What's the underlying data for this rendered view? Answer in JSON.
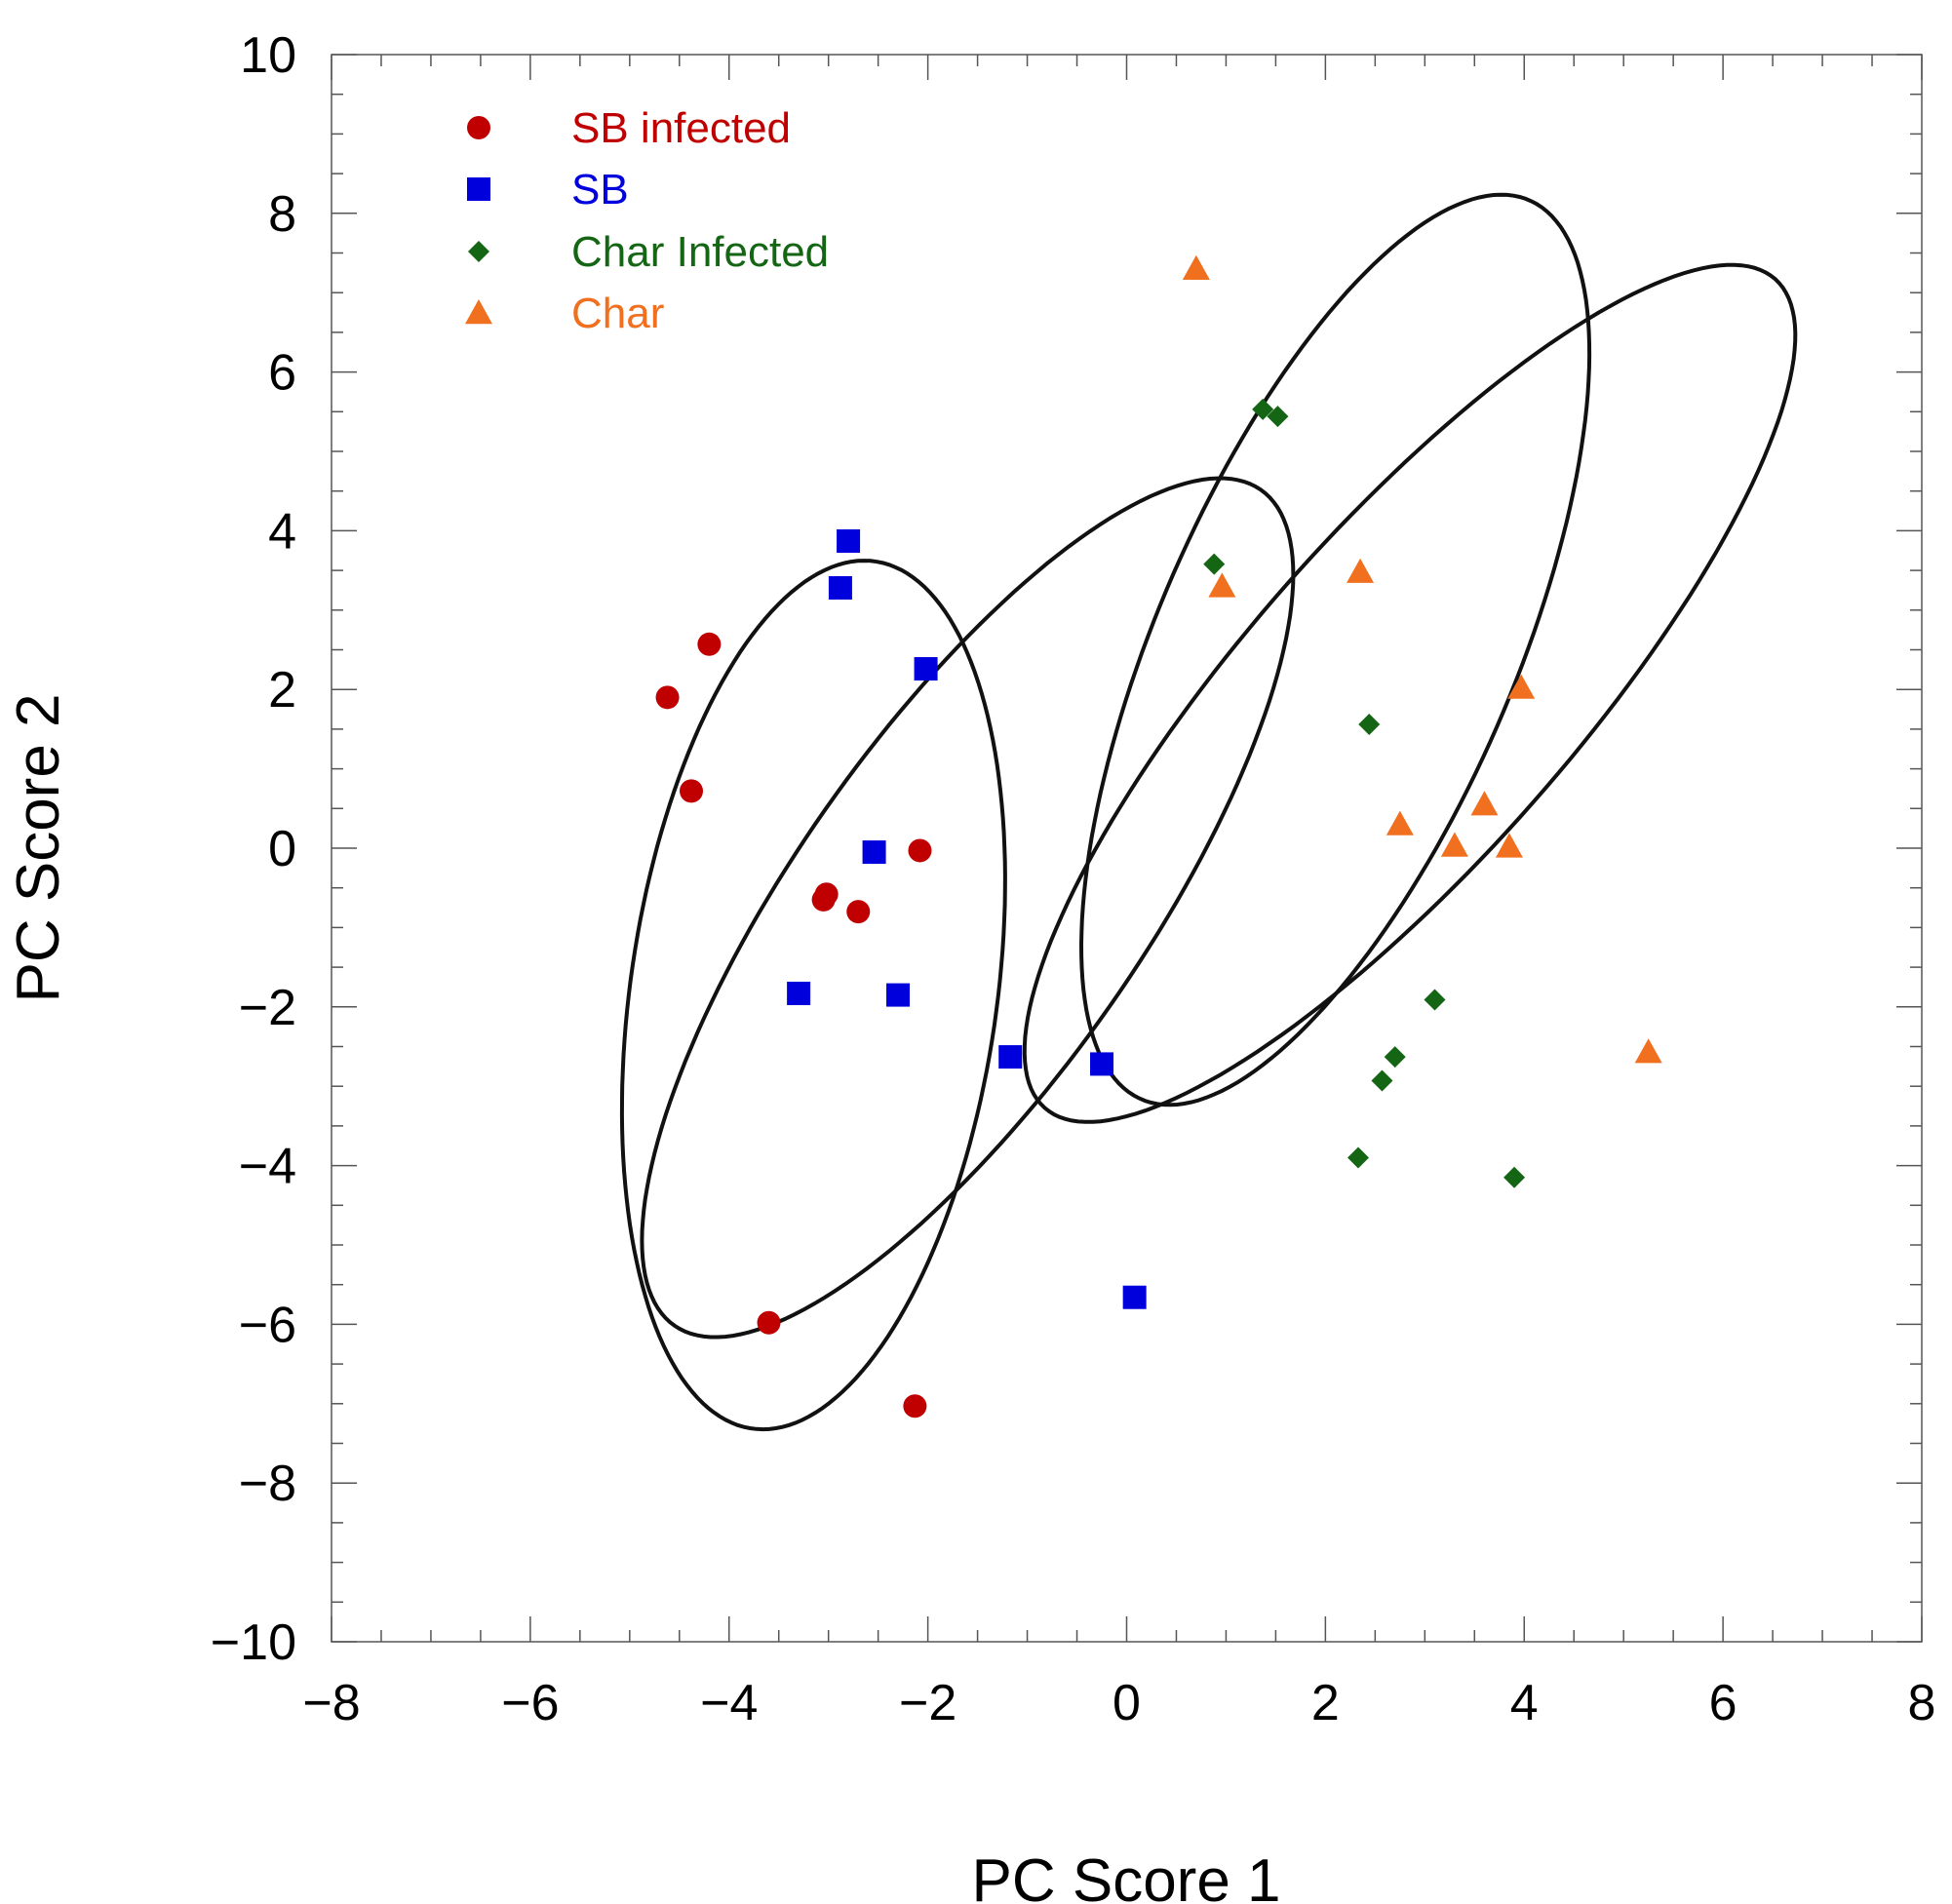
{
  "chart_data": {
    "type": "scatter",
    "title": "",
    "xlabel": "PC Score 1",
    "ylabel": "PC Score 2",
    "xlim": [
      -8,
      8
    ],
    "ylim": [
      -10,
      10
    ],
    "xticks": [
      -8,
      -6,
      -4,
      -2,
      0,
      2,
      4,
      6,
      8
    ],
    "yticks": [
      -10,
      -8,
      -6,
      -4,
      -2,
      0,
      2,
      4,
      6,
      8,
      10
    ],
    "grid": false,
    "legend_position": "top-left",
    "series": [
      {
        "name": "SB infected",
        "marker": "circle",
        "color": "#c00000",
        "points": [
          [
            -4.62,
            1.9
          ],
          [
            -4.2,
            2.57
          ],
          [
            -4.38,
            0.72
          ],
          [
            -3.05,
            -0.65
          ],
          [
            -3.02,
            -0.58
          ],
          [
            -2.7,
            -0.8
          ],
          [
            -2.08,
            -0.03
          ],
          [
            -3.6,
            -5.98
          ],
          [
            -2.13,
            -7.03
          ]
        ]
      },
      {
        "name": "SB",
        "marker": "square",
        "color": "#0000dd",
        "points": [
          [
            -2.8,
            3.87
          ],
          [
            -2.88,
            3.28
          ],
          [
            -2.02,
            2.26
          ],
          [
            -2.54,
            -0.05
          ],
          [
            -3.3,
            -1.83
          ],
          [
            -2.3,
            -1.85
          ],
          [
            -1.17,
            -2.63
          ],
          [
            -0.25,
            -2.72
          ],
          [
            0.08,
            -5.66
          ]
        ]
      },
      {
        "name": "Char Infected",
        "marker": "diamond",
        "color": "#146614",
        "points": [
          [
            1.37,
            5.53
          ],
          [
            1.52,
            5.44
          ],
          [
            0.88,
            3.58
          ],
          [
            2.44,
            1.56
          ],
          [
            3.1,
            -1.91
          ],
          [
            2.7,
            -2.63
          ],
          [
            2.57,
            -2.93
          ],
          [
            2.33,
            -3.9
          ],
          [
            3.9,
            -4.15
          ]
        ]
      },
      {
        "name": "Char",
        "marker": "triangle",
        "color": "#f07020",
        "points": [
          [
            0.7,
            7.3
          ],
          [
            0.96,
            3.3
          ],
          [
            2.35,
            3.48
          ],
          [
            3.97,
            2.02
          ],
          [
            2.75,
            0.3
          ],
          [
            3.6,
            0.55
          ],
          [
            3.3,
            0.03
          ],
          [
            3.85,
            0.02
          ],
          [
            5.25,
            -2.57
          ]
        ]
      }
    ],
    "ellipses": [
      {
        "cx": -3.15,
        "cy": -1.85,
        "rx": 5.5,
        "ry": 1.85,
        "angle_deg": 84
      },
      {
        "cx": -1.6,
        "cy": -0.75,
        "rx": 6.05,
        "ry": 1.85,
        "angle_deg": 62
      },
      {
        "cx": 2.1,
        "cy": 2.5,
        "rx": 6.0,
        "ry": 1.85,
        "angle_deg": 72
      },
      {
        "cx": 2.85,
        "cy": 1.95,
        "rx": 6.4,
        "ry": 1.8,
        "angle_deg": 56
      }
    ]
  }
}
